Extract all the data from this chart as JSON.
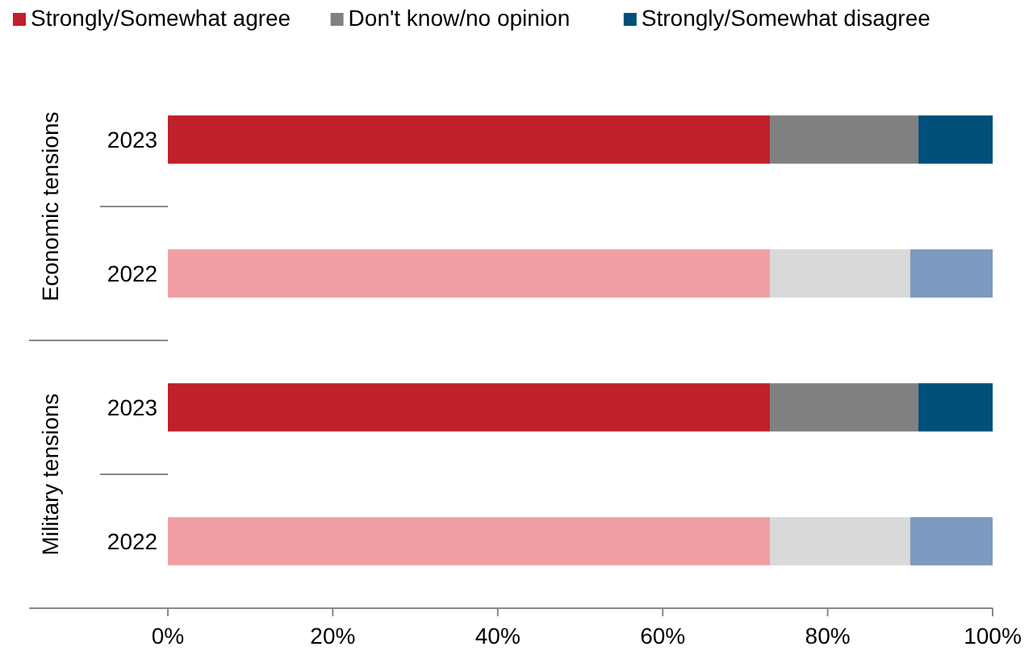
{
  "chart_data": {
    "type": "bar",
    "orientation": "horizontal",
    "stacked": true,
    "categories": [
      "2023",
      "2022",
      "2023",
      "2022"
    ],
    "annotations": [
      "Economic tensions",
      "Military tensions"
    ],
    "series": [
      {
        "name": "Strongly/Somewhat agree",
        "color": "#c0202a",
        "colors": [
          "#c0202a",
          "#f0a0a4",
          "#c0202a",
          "#f0a0a4"
        ],
        "values": [
          73,
          73,
          73,
          73
        ]
      },
      {
        "name": "Don't know/no opinion",
        "color": "#808080",
        "colors": [
          "#808080",
          "#d9d9d9",
          "#808080",
          "#d9d9d9"
        ],
        "values": [
          18,
          17,
          18,
          17
        ]
      },
      {
        "name": "Strongly/Somewhat disagree",
        "color": "#00507a",
        "colors": [
          "#00507a",
          "#7a9bbf",
          "#00507a",
          "#7a9bbf"
        ],
        "values": [
          9,
          10,
          9,
          10
        ]
      }
    ],
    "xlim": [
      0,
      100
    ],
    "xticks": [
      {
        "value": 0,
        "label": "0%"
      },
      {
        "value": 20,
        "label": "20%"
      },
      {
        "value": 40,
        "label": "40%"
      },
      {
        "value": 60,
        "label": "60%"
      },
      {
        "value": 80,
        "label": "80%"
      },
      {
        "value": 100,
        "label": "100%"
      }
    ],
    "legend": "top",
    "grid": false
  }
}
